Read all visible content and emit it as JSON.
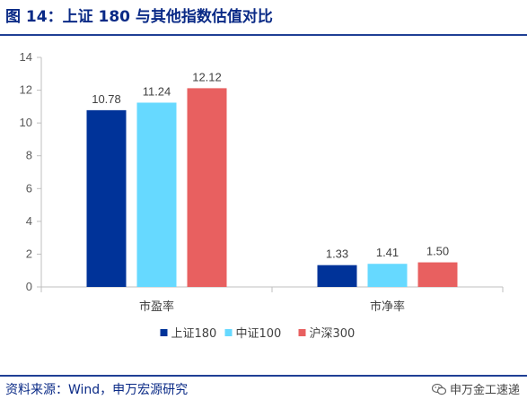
{
  "figure": {
    "title": "图 14：上证 180 与其他指数估值对比",
    "source": "资料来源：Wind，申万宏源研究",
    "watermark": "申万金工速递",
    "watermark_icon": "wechat-icon"
  },
  "chart_data": {
    "type": "bar",
    "categories": [
      "市盈率",
      "市净率"
    ],
    "series": [
      {
        "name": "上证180",
        "values": [
          10.78,
          1.33
        ],
        "color": "#003399"
      },
      {
        "name": "中证100",
        "values": [
          11.24,
          1.41
        ],
        "color": "#66d9ff"
      },
      {
        "name": "沪深300",
        "values": [
          12.12,
          1.5
        ],
        "color": "#e86060"
      }
    ],
    "data_labels": [
      [
        "10.78",
        "11.24",
        "12.12"
      ],
      [
        "1.33",
        "1.41",
        "1.50"
      ]
    ],
    "ylim": [
      0,
      14
    ],
    "yticks": [
      0,
      2,
      4,
      6,
      8,
      10,
      12,
      14
    ],
    "ytick_labels": [
      "0",
      "2",
      "4",
      "6",
      "8",
      "10",
      "12",
      "14"
    ],
    "grid": false,
    "legend": "bottom"
  }
}
